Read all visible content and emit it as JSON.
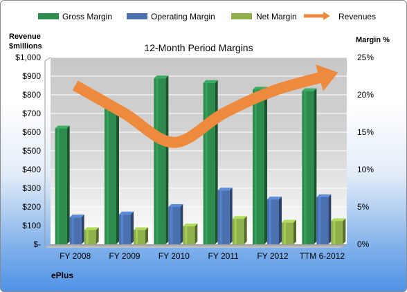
{
  "chart_data": {
    "type": "bar",
    "title": "12-Month Period Margins",
    "company": "ePlus",
    "categories": [
      "FY 2008",
      "FY 2009",
      "FY 2010",
      "FY 2011",
      "FY 2012",
      "TTM 6-2012"
    ],
    "left_axis": {
      "label_line1": "Revenue",
      "label_line2": "$millions",
      "ticks": [
        "$-",
        "$100",
        "$200",
        "$300",
        "$400",
        "$500",
        "$600",
        "$700",
        "$800",
        "$900",
        "$1,000"
      ],
      "range": [
        0,
        1000
      ]
    },
    "right_axis": {
      "label": "Margin %",
      "ticks": [
        "0%",
        "5%",
        "10%",
        "15%",
        "20%",
        "25%"
      ],
      "range": [
        0,
        25
      ]
    },
    "series": [
      {
        "name": "Gross Margin",
        "kind": "bar",
        "axis": "right",
        "color": "#2e8b4e",
        "values": [
          15.5,
          18.3,
          22.2,
          21.6,
          20.7,
          20.5
        ]
      },
      {
        "name": "Operating Margin",
        "kind": "bar",
        "axis": "right",
        "color": "#4a70b0",
        "values": [
          3.6,
          4.0,
          5.0,
          7.2,
          6.0,
          6.3
        ]
      },
      {
        "name": "Net Margin",
        "kind": "bar",
        "axis": "right",
        "color": "#8fb04a",
        "values": [
          1.9,
          1.9,
          2.4,
          3.4,
          2.9,
          3.1
        ]
      },
      {
        "name": "Revenues",
        "kind": "line",
        "axis": "left",
        "color": "#ed8a3d",
        "values": [
          850,
          700,
          545,
          700,
          820,
          895
        ]
      }
    ],
    "grid": true,
    "legend": "top"
  }
}
